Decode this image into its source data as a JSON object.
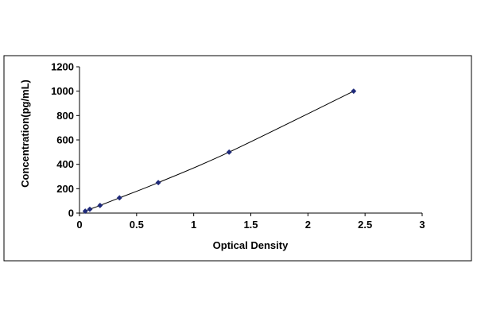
{
  "chart_data": {
    "type": "scatter",
    "title": "",
    "xlabel": "Optical Density",
    "ylabel": "Concentration(pg/mL)",
    "xlim": [
      0,
      3
    ],
    "ylim": [
      0,
      1200
    ],
    "xticks": [
      0,
      0.5,
      1,
      1.5,
      2,
      2.5,
      3
    ],
    "xtick_labels": [
      "0",
      "0.5",
      "1",
      "1.5",
      "2",
      "2.5",
      "3"
    ],
    "yticks": [
      0,
      200,
      400,
      600,
      800,
      1000,
      1200
    ],
    "ytick_labels": [
      "0",
      "200",
      "400",
      "600",
      "800",
      "1000",
      "1200"
    ],
    "grid": false,
    "legend": "none",
    "marker": "diamond",
    "series": [
      {
        "x": [
          0.05,
          0.09,
          0.18,
          0.35,
          0.69,
          1.31,
          2.4
        ],
        "y": [
          15.6,
          31.2,
          62.5,
          125,
          250,
          500,
          1000
        ],
        "color": "#1f2a7a",
        "line_color": "#000000",
        "curve": "smooth"
      }
    ]
  }
}
